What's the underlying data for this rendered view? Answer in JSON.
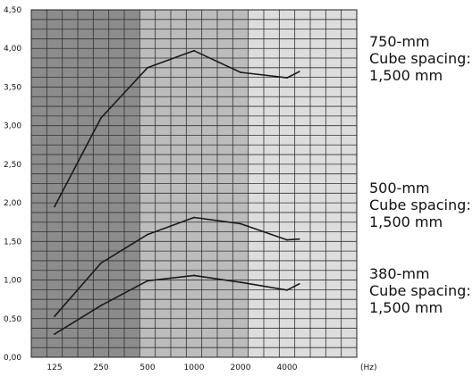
{
  "chart_data": {
    "type": "line",
    "x_unit": "(Hz)",
    "x_labels": [
      "125",
      "250",
      "500",
      "1000",
      "2000",
      "4000"
    ],
    "x": [
      125,
      250,
      500,
      1000,
      2000,
      4000,
      4800
    ],
    "ylim": [
      0,
      4.5
    ],
    "y_ticks": [
      "0,00",
      "0,50",
      "1,00",
      "1,50",
      "2,00",
      "2,50",
      "3,00",
      "3,50",
      "4,00",
      "4,50"
    ],
    "grid": true,
    "background_bands": [
      "#8c8c8c",
      "#bcbcbc",
      "#dddddd"
    ],
    "line_color": "#1a1a1a",
    "series": [
      {
        "label": [
          "750-mm",
          "Cube spacing:",
          "1,500 mm"
        ],
        "values": [
          1.95,
          3.1,
          3.75,
          3.97,
          3.69,
          3.62,
          3.7
        ]
      },
      {
        "label": [
          "500-mm",
          "Cube spacing:",
          "1,500 mm"
        ],
        "values": [
          0.53,
          1.22,
          1.59,
          1.81,
          1.73,
          1.52,
          1.53
        ]
      },
      {
        "label": [
          "380-mm",
          "Cube spacing:",
          "1,500 mm"
        ],
        "values": [
          0.3,
          0.67,
          0.99,
          1.06,
          0.97,
          0.87,
          0.95
        ]
      }
    ]
  }
}
